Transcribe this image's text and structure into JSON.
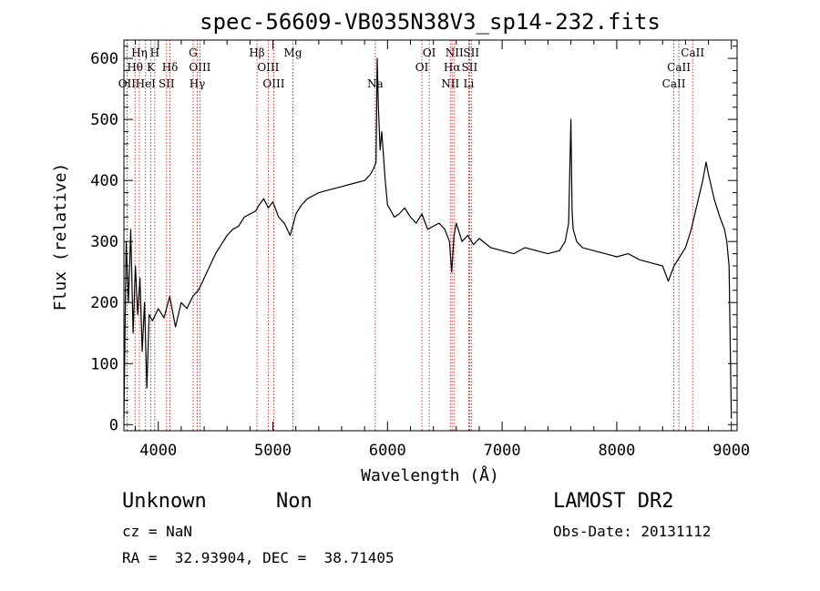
{
  "chart_data": {
    "type": "line",
    "title": "spec-56609-VB035N38V3_sp14-232.fits",
    "xlabel": "Wavelength (Å)",
    "ylabel": "Flux (relative)",
    "xlim": [
      3700,
      9050
    ],
    "ylim": [
      -10,
      630
    ],
    "x_ticks": [
      4000,
      5000,
      6000,
      7000,
      8000,
      9000
    ],
    "y_ticks": [
      0,
      100,
      200,
      300,
      400,
      500,
      600
    ],
    "grid": false,
    "line_color": "#000000",
    "marker_color": "#cc0000",
    "series": [
      {
        "x": [
          3700,
          3720,
          3740,
          3760,
          3780,
          3800,
          3820,
          3840,
          3860,
          3880,
          3900,
          3920,
          3950,
          4000,
          4050,
          4100,
          4150,
          4200,
          4250,
          4300,
          4350,
          4400,
          4450,
          4500,
          4550,
          4600,
          4650,
          4700,
          4750,
          4800,
          4850,
          4880,
          4920,
          4960,
          5000,
          5050,
          5100,
          5150,
          5180,
          5200,
          5250,
          5300,
          5400,
          5500,
          5600,
          5700,
          5800,
          5850,
          5880,
          5900,
          5910,
          5920,
          5935,
          5950,
          5980,
          6000,
          6030,
          6060,
          6100,
          6150,
          6200,
          6250,
          6300,
          6350,
          6400,
          6450,
          6500,
          6540,
          6560,
          6580,
          6600,
          6650,
          6700,
          6750,
          6800,
          6900,
          7000,
          7100,
          7200,
          7300,
          7400,
          7500,
          7550,
          7580,
          7600,
          7610,
          7620,
          7650,
          7700,
          7800,
          7900,
          8000,
          8100,
          8200,
          8300,
          8400,
          8450,
          8500,
          8550,
          8600,
          8650,
          8700,
          8750,
          8780,
          8800,
          8850,
          8900,
          8940,
          8960,
          8980,
          9000
        ],
        "y": [
          10,
          300,
          200,
          320,
          150,
          260,
          180,
          240,
          120,
          200,
          60,
          180,
          170,
          190,
          175,
          210,
          160,
          200,
          190,
          210,
          220,
          240,
          260,
          280,
          295,
          310,
          320,
          325,
          340,
          345,
          350,
          360,
          370,
          355,
          365,
          340,
          330,
          310,
          330,
          345,
          360,
          370,
          380,
          385,
          390,
          395,
          400,
          410,
          420,
          430,
          600,
          520,
          450,
          480,
          400,
          360,
          350,
          340,
          345,
          355,
          340,
          330,
          345,
          320,
          325,
          330,
          320,
          300,
          250,
          310,
          330,
          300,
          310,
          295,
          305,
          290,
          285,
          280,
          290,
          285,
          280,
          285,
          300,
          330,
          500,
          350,
          320,
          300,
          290,
          285,
          280,
          275,
          280,
          270,
          265,
          260,
          235,
          260,
          275,
          290,
          320,
          360,
          400,
          430,
          410,
          370,
          340,
          320,
          300,
          260,
          10
        ]
      }
    ],
    "lines": [
      {
        "label": "OII",
        "wl": 3727,
        "row": 3
      },
      {
        "label": "Hθ",
        "wl": 3797,
        "row": 2
      },
      {
        "label": "Hη",
        "wl": 3835,
        "row": 1
      },
      {
        "label": "H",
        "wl": 3969,
        "row": 1
      },
      {
        "label": "K",
        "wl": 3934,
        "row": 2
      },
      {
        "label": "HeI",
        "wl": 3889,
        "row": 3
      },
      {
        "label": "SII",
        "wl": 4072,
        "row": 3
      },
      {
        "label": "Hδ",
        "wl": 4102,
        "row": 2
      },
      {
        "label": "G",
        "wl": 4304,
        "row": 1
      },
      {
        "label": "OIII",
        "wl": 4363,
        "row": 2
      },
      {
        "label": "Hγ",
        "wl": 4340,
        "row": 3
      },
      {
        "label": "Hβ",
        "wl": 4861,
        "row": 1
      },
      {
        "label": "OIII",
        "wl": 4959,
        "row": 2
      },
      {
        "label": "OIII",
        "wl": 5007,
        "row": 3
      },
      {
        "label": "Mg",
        "wl": 5175,
        "row": 1
      },
      {
        "label": "Na",
        "wl": 5893,
        "row": 3
      },
      {
        "label": "OI",
        "wl": 6300,
        "row": 2
      },
      {
        "label": "OI",
        "wl": 6364,
        "row": 1
      },
      {
        "label": "NII",
        "wl": 6548,
        "row": 3
      },
      {
        "label": "NII",
        "wl": 6584,
        "row": 1
      },
      {
        "label": "Hα",
        "wl": 6563,
        "row": 2
      },
      {
        "label": "SII",
        "wl": 6716,
        "row": 2
      },
      {
        "label": "SII",
        "wl": 6731,
        "row": 1
      },
      {
        "label": "Li",
        "wl": 6708,
        "row": 3
      },
      {
        "label": "CaII",
        "wl": 8498,
        "row": 3
      },
      {
        "label": "CaII",
        "wl": 8542,
        "row": 2
      },
      {
        "label": "CaII",
        "wl": 8662,
        "row": 1
      }
    ]
  },
  "info": {
    "class": "Unknown",
    "subclass": "Non",
    "cz": "cz = NaN",
    "coords": "RA =  32.93904, DEC =  38.71405",
    "survey": "LAMOST DR2",
    "obs_date": "Obs-Date: 20131112"
  }
}
